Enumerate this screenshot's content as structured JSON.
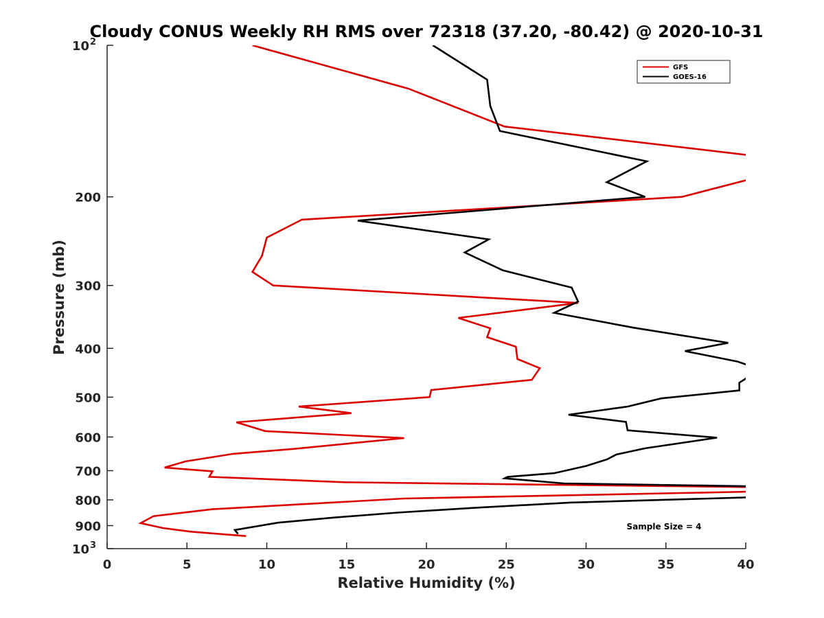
{
  "chart_data": {
    "type": "line",
    "title": "Cloudy CONUS Weekly RH RMS over 72318 (37.20, -80.42) @ 2020-10-31",
    "xlabel": "Relative Humidity (%)",
    "ylabel": "Pressure (mb)",
    "xlim": [
      0,
      40
    ],
    "ylim": [
      100,
      1000
    ],
    "yscale": "log",
    "y_reversed": false,
    "grid": false,
    "legend_location": "top-right",
    "annotation": "Sample Size = 4",
    "x_ticks": [
      {
        "value": 0,
        "label": "0"
      },
      {
        "value": 5,
        "label": "5"
      },
      {
        "value": 10,
        "label": "10"
      },
      {
        "value": 15,
        "label": "15"
      },
      {
        "value": 20,
        "label": "20"
      },
      {
        "value": 25,
        "label": "25"
      },
      {
        "value": 30,
        "label": "30"
      },
      {
        "value": 35,
        "label": "35"
      },
      {
        "value": 40,
        "label": "40"
      }
    ],
    "y_ticks": [
      {
        "value": 100,
        "base": "10",
        "exp": "2"
      },
      {
        "value": 200,
        "base": "200",
        "exp": ""
      },
      {
        "value": 300,
        "base": "300",
        "exp": ""
      },
      {
        "value": 400,
        "base": "400",
        "exp": ""
      },
      {
        "value": 500,
        "base": "500",
        "exp": ""
      },
      {
        "value": 600,
        "base": "600",
        "exp": ""
      },
      {
        "value": 700,
        "base": "700",
        "exp": ""
      },
      {
        "value": 800,
        "base": "800",
        "exp": ""
      },
      {
        "value": 900,
        "base": "900",
        "exp": ""
      },
      {
        "value": 1000,
        "base": "10",
        "exp": "3"
      }
    ],
    "series": [
      {
        "name": "GFS",
        "color": "#dd0000",
        "points": [
          [
            9.1,
            100
          ],
          [
            18.9,
            122
          ],
          [
            24.9,
            145
          ],
          [
            40.7,
            166
          ],
          [
            40.7,
            183
          ],
          [
            36.0,
            200
          ],
          [
            12.2,
            222
          ],
          [
            10.0,
            241
          ],
          [
            9.7,
            262
          ],
          [
            9.1,
            282
          ],
          [
            10.4,
            300
          ],
          [
            29.5,
            325
          ],
          [
            22.0,
            348
          ],
          [
            24.0,
            365
          ],
          [
            23.8,
            380
          ],
          [
            25.6,
            397
          ],
          [
            25.7,
            420
          ],
          [
            27.1,
            438
          ],
          [
            26.6,
            462
          ],
          [
            20.3,
            484
          ],
          [
            20.2,
            500
          ],
          [
            12.0,
            522
          ],
          [
            15.3,
            538
          ],
          [
            8.1,
            561
          ],
          [
            9.9,
            584
          ],
          [
            18.6,
            603
          ],
          [
            11.6,
            634
          ],
          [
            7.9,
            648
          ],
          [
            4.9,
            671
          ],
          [
            3.6,
            690
          ],
          [
            6.6,
            702
          ],
          [
            6.4,
            720
          ],
          [
            14.9,
            738
          ],
          [
            40.7,
            755
          ],
          [
            40.7,
            770
          ],
          [
            18.6,
            795
          ],
          [
            6.6,
            835
          ],
          [
            2.9,
            862
          ],
          [
            2.1,
            890
          ],
          [
            3.5,
            910
          ],
          [
            5.2,
            925
          ],
          [
            8.7,
            944
          ]
        ]
      },
      {
        "name": "GOES-16",
        "color": "#000000",
        "points": [
          [
            20.4,
            100
          ],
          [
            23.8,
            117
          ],
          [
            24.0,
            132
          ],
          [
            24.6,
            148
          ],
          [
            33.8,
            170
          ],
          [
            31.3,
            187
          ],
          [
            33.7,
            200
          ],
          [
            15.7,
            223
          ],
          [
            23.9,
            243
          ],
          [
            22.4,
            258
          ],
          [
            24.8,
            280
          ],
          [
            29.1,
            303
          ],
          [
            29.5,
            323
          ],
          [
            28.0,
            340
          ],
          [
            33.0,
            364
          ],
          [
            38.9,
            390
          ],
          [
            36.2,
            405
          ],
          [
            39.5,
            425
          ],
          [
            40.7,
            438
          ],
          [
            40.7,
            445
          ],
          [
            39.6,
            468
          ],
          [
            39.6,
            485
          ],
          [
            34.7,
            503
          ],
          [
            32.6,
            522
          ],
          [
            28.9,
            542
          ],
          [
            32.5,
            560
          ],
          [
            32.6,
            582
          ],
          [
            38.2,
            602
          ],
          [
            33.7,
            632
          ],
          [
            31.9,
            650
          ],
          [
            31.3,
            665
          ],
          [
            30.0,
            685
          ],
          [
            28.0,
            708
          ],
          [
            25.1,
            720
          ],
          [
            24.9,
            725
          ],
          [
            28.6,
            742
          ],
          [
            40.7,
            752
          ],
          [
            40.7,
            790
          ],
          [
            29.0,
            810
          ],
          [
            22.9,
            830
          ],
          [
            18.2,
            848
          ],
          [
            14.1,
            868
          ],
          [
            10.7,
            888
          ],
          [
            8.0,
            918
          ],
          [
            8.2,
            935
          ]
        ]
      }
    ]
  }
}
